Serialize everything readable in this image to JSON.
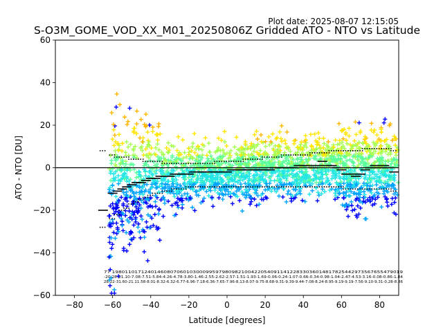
{
  "plot_date": "Plot date: 2025-08-07 12:15:05",
  "chart_data": {
    "type": "scatter",
    "title": "S-O3M_GOME_VOD_XX_M01_20250806Z Gridded ATO - NTO vs Latitude",
    "xlabel": "Latitude [degrees]",
    "ylabel": "ATO - NTO [DU]",
    "xlim": [
      -90,
      90
    ],
    "ylim": [
      -60,
      60
    ],
    "xticks": [
      -80,
      -60,
      -40,
      -20,
      0,
      20,
      40,
      60,
      80
    ],
    "xtick_labels": [
      "−80",
      "−60",
      "−40",
      "−20",
      "0",
      "20",
      "40",
      "60",
      "80"
    ],
    "yticks": [
      -60,
      -40,
      -20,
      0,
      20,
      40,
      60
    ],
    "ytick_labels": [
      "−60",
      "−40",
      "−20",
      "0",
      "20",
      "40",
      "60"
    ],
    "zero_line": 0,
    "scatter_colors": [
      "#0000ff",
      "#00a4ff",
      "#22e6e6",
      "#5bff9c",
      "#a6ff51",
      "#ffe600",
      "#ffb600"
    ],
    "lat_bins": [
      -65,
      -60,
      -57.5,
      -55,
      -52.5,
      -50,
      -47.5,
      -45,
      -42.5,
      -40,
      -37.5,
      -35,
      -32.5,
      -30,
      -27.5,
      -25,
      -22.5,
      -20,
      -17.5,
      -15,
      -12.5,
      -10,
      -7.5,
      -5,
      -2.5,
      0,
      2.5,
      5,
      7.5,
      10,
      12.5,
      15,
      17.5,
      20,
      22.5,
      25,
      27.5,
      30,
      32.5,
      35,
      37.5,
      40,
      42.5,
      45,
      47.5,
      50,
      52.5,
      55,
      57.5,
      60,
      62.5,
      65,
      67.5,
      70,
      72.5,
      75,
      77.5,
      80,
      82.5,
      85,
      87.5
    ],
    "bin_mean": [
      -20,
      -12,
      -11,
      -10,
      -9,
      -8,
      -7,
      -7,
      -6,
      -5,
      -5,
      -4,
      -4,
      -4,
      -3,
      -3,
      -3,
      -3,
      -2,
      -2,
      -2,
      -2,
      -2,
      -2,
      -2,
      -2,
      -1,
      -1,
      -1,
      -1,
      -1,
      -1,
      -1,
      -1,
      -1,
      0,
      0,
      0,
      0,
      0,
      1,
      1,
      1,
      0,
      1,
      3,
      1,
      1,
      0,
      -1,
      -3,
      -3,
      -4,
      -3,
      -1,
      0,
      1,
      0,
      1,
      0,
      -2
    ],
    "bin_upper": [
      8,
      6,
      5,
      5,
      5,
      4,
      4,
      4,
      3,
      3,
      3,
      3,
      2,
      2,
      2,
      2,
      2,
      2,
      2,
      2,
      2,
      2,
      2,
      3,
      3,
      3,
      3,
      3,
      3,
      4,
      4,
      4,
      4,
      5,
      5,
      5,
      5,
      6,
      6,
      6,
      6,
      6,
      6,
      7,
      7,
      7,
      7,
      8,
      8,
      8,
      8,
      8,
      8,
      8,
      9,
      9,
      9,
      9,
      9,
      9,
      8
    ],
    "bin_lower": [
      -28,
      -24,
      -22,
      -20,
      -19,
      -17,
      -16,
      -15,
      -14,
      -13,
      -12,
      -12,
      -11,
      -11,
      -10,
      -10,
      -10,
      -9,
      -9,
      -9,
      -9,
      -9,
      -9,
      -9,
      -9,
      -9,
      -9,
      -9,
      -9,
      -9,
      -9,
      -9,
      -9,
      -9,
      -9,
      -9,
      -9,
      -9,
      -9,
      -9,
      -9,
      -9,
      -9,
      -9,
      -9,
      -9,
      -9,
      -9,
      -9,
      -9,
      -10,
      -10,
      -10,
      -10,
      -10,
      -10,
      -10,
      -10,
      -10,
      -10,
      -11
    ],
    "stats_labels": {
      "counts": "77 198011017124014608070601030009959798098210042205409114122833036014817825442973567655479019",
      "means": "-20.28-11.10-7.08-7.51-5.84-4.26-4.78-3.80-1.46-2.55-2.62-2.57-1.51-1.93-1.69-0.06-0.24-1.07-0.66-0.34-0.98-1.04-2.47-4.53-3.16-0.08-0.86-1.84",
      "sds": "28.22-31.60-21.11.58-8.01-8.32-6.32-6.77-6.96-7.18-6.36-7.65-7.96-8.13-8.07-9.75-8.68-9.31-9.39-9.44-7.08-8.24-8.95-9.19-9.19-7.56-9.10-9.31-0.28-8.86"
    }
  }
}
